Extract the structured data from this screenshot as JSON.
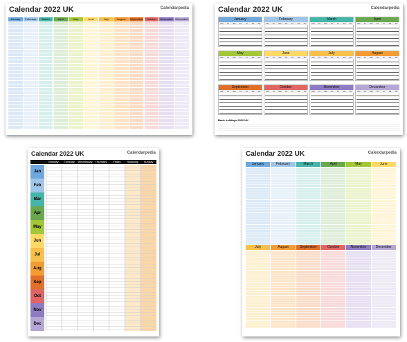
{
  "calendars": [
    {
      "title": "Calendar 2022 UK",
      "logo": "Calendarpedia",
      "months": [
        "January",
        "February",
        "March",
        "April",
        "May",
        "June",
        "July",
        "August",
        "September",
        "October",
        "November",
        "December"
      ]
    },
    {
      "title": "Calendar 2022 UK",
      "logo": "Calendarpedia",
      "months": [
        "January",
        "February",
        "March",
        "April",
        "May",
        "June",
        "July",
        "August",
        "September",
        "October",
        "November",
        "December"
      ],
      "weekdays": [
        "Mo",
        "Tu",
        "We",
        "Th",
        "Fr",
        "Sa",
        "Su"
      ],
      "footer": "Bank holidays 2022 UK"
    },
    {
      "title": "Calendar 2022 UK",
      "logo": "Calendarpedia",
      "weekdays": [
        "Monday",
        "Tuesday",
        "Wednesday",
        "Thursday",
        "Friday",
        "Saturday",
        "Sunday"
      ],
      "months": [
        "Jan",
        "Feb",
        "Mar",
        "Apr",
        "May",
        "Jun",
        "Jul",
        "Aug",
        "Sep",
        "Oct",
        "Nov",
        "Dec"
      ]
    },
    {
      "title": "Calendar 2022 UK",
      "logo": "Calendarpedia",
      "months": [
        "January",
        "February",
        "March",
        "April",
        "May",
        "June",
        "July",
        "August",
        "September",
        "October",
        "November",
        "December"
      ]
    }
  ]
}
